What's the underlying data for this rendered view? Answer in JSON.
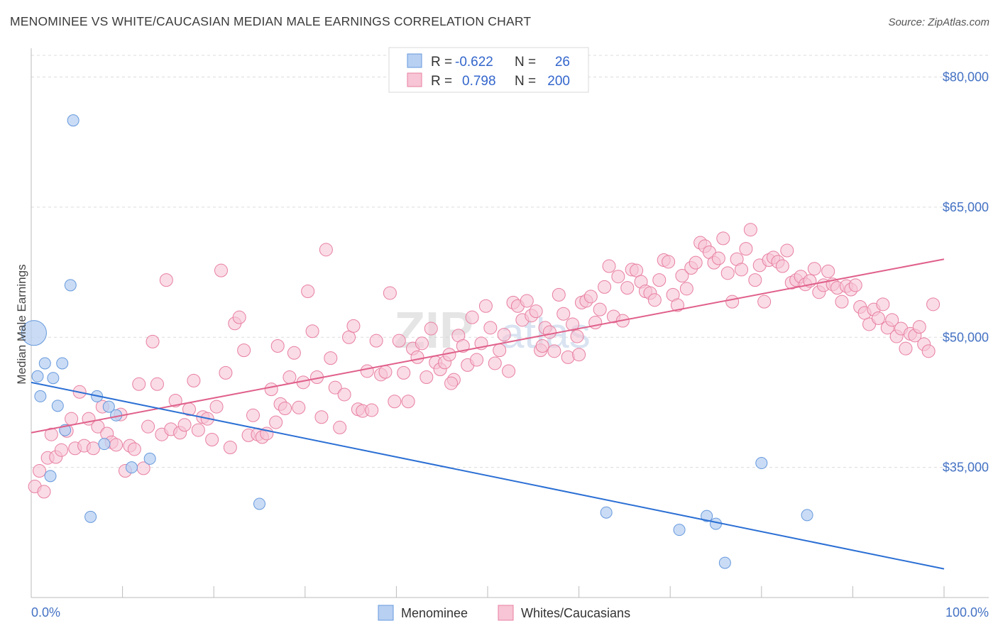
{
  "title": "MENOMINEE VS WHITE/CAUCASIAN MEDIAN MALE EARNINGS CORRELATION CHART",
  "source": "Source: ZipAtlas.com",
  "watermark": {
    "zip": "ZIP",
    "atlas": "atlas"
  },
  "colors": {
    "menominee": "#6699dd",
    "menominee_fill": "#b8d0f2",
    "white": "#e87fa0",
    "white_fill": "#f7c5d5",
    "menominee_line": "#2b6fd4",
    "white_line": "#e0608a",
    "tick_text": "#4472c4"
  },
  "legend": {
    "rows": [
      {
        "r_label": "R =",
        "r_value": "-0.622",
        "n_label": "N =",
        "n_value": "26"
      },
      {
        "r_label": "R =",
        "r_value": "0.798",
        "n_label": "N =",
        "n_value": "200"
      }
    ]
  },
  "bottom_legend": [
    "Menominee",
    "Whites/Caucasians"
  ],
  "chart_data": {
    "type": "scatter",
    "ylabel": "Median Male Earnings",
    "x_tick_labels": [
      "0.0%",
      "100.0%"
    ],
    "y_tick_labels": [
      "$35,000",
      "$50,000",
      "$65,000",
      "$80,000"
    ],
    "y_ticks": [
      35000,
      50000,
      65000,
      80000
    ],
    "xlim": [
      0,
      100
    ],
    "ylim": [
      20000,
      82500
    ],
    "grid": "horizontal dashed",
    "legend_placement": "top-center",
    "series": [
      {
        "name": "Menominee",
        "trend": [
          [
            0,
            44800
          ],
          [
            100,
            23300
          ]
        ],
        "points": [
          [
            0.3,
            50500,
            2.2
          ],
          [
            4.6,
            75000,
            1
          ],
          [
            4.3,
            56000,
            1
          ],
          [
            1.5,
            47000,
            1
          ],
          [
            3.4,
            47000,
            1
          ],
          [
            0.7,
            45500,
            1
          ],
          [
            2.4,
            45300,
            1
          ],
          [
            1.0,
            43200,
            1
          ],
          [
            7.2,
            43200,
            1
          ],
          [
            2.9,
            42100,
            1
          ],
          [
            8.5,
            42000,
            1
          ],
          [
            9.3,
            41000,
            1
          ],
          [
            3.7,
            39300,
            1
          ],
          [
            8.0,
            37700,
            1
          ],
          [
            13.0,
            36000,
            1
          ],
          [
            11.0,
            35000,
            1
          ],
          [
            2.1,
            34000,
            1
          ],
          [
            6.5,
            29300,
            1
          ],
          [
            25.0,
            30800,
            1
          ],
          [
            63.0,
            29800,
            1
          ],
          [
            71.0,
            27800,
            1
          ],
          [
            74.0,
            29400,
            1
          ],
          [
            75.0,
            28500,
            1
          ],
          [
            76.0,
            24000,
            1
          ],
          [
            80.0,
            35500,
            1
          ],
          [
            85.0,
            29500,
            1
          ]
        ]
      },
      {
        "name": "Whites/Caucasians",
        "trend": [
          [
            0,
            39000
          ],
          [
            100,
            59000
          ]
        ],
        "points": [
          [
            0.4,
            32800
          ],
          [
            0.9,
            34600
          ],
          [
            1.4,
            32200
          ],
          [
            1.8,
            36100
          ],
          [
            2.2,
            38800
          ],
          [
            2.7,
            36200
          ],
          [
            3.3,
            37000
          ],
          [
            3.9,
            39200
          ],
          [
            4.4,
            40600
          ],
          [
            4.8,
            37200
          ],
          [
            5.3,
            43700
          ],
          [
            5.8,
            37500
          ],
          [
            6.3,
            40600
          ],
          [
            6.8,
            37200
          ],
          [
            7.3,
            39700
          ],
          [
            7.8,
            42000
          ],
          [
            8.3,
            38900
          ],
          [
            8.8,
            37900
          ],
          [
            9.3,
            37600
          ],
          [
            9.8,
            41100
          ],
          [
            10.3,
            34600
          ],
          [
            10.8,
            37500
          ],
          [
            11.3,
            37100
          ],
          [
            11.8,
            44600
          ],
          [
            12.3,
            34900
          ],
          [
            12.8,
            39700
          ],
          [
            13.3,
            49500
          ],
          [
            13.8,
            44600
          ],
          [
            14.3,
            38800
          ],
          [
            14.8,
            56600
          ],
          [
            15.3,
            39400
          ],
          [
            15.8,
            42700
          ],
          [
            16.3,
            39000
          ],
          [
            16.8,
            39900
          ],
          [
            17.3,
            41700
          ],
          [
            17.8,
            45000
          ],
          [
            18.3,
            39300
          ],
          [
            18.8,
            40800
          ],
          [
            19.3,
            40600
          ],
          [
            19.8,
            38200
          ],
          [
            20.3,
            42000
          ],
          [
            20.8,
            57700
          ],
          [
            21.3,
            45900
          ],
          [
            21.8,
            37300
          ],
          [
            22.3,
            51600
          ],
          [
            22.8,
            52300
          ],
          [
            23.3,
            48500
          ],
          [
            23.8,
            38700
          ],
          [
            24.3,
            41000
          ],
          [
            24.8,
            38800
          ],
          [
            25.3,
            38500
          ],
          [
            25.8,
            38900
          ],
          [
            26.3,
            44000
          ],
          [
            26.8,
            40200
          ],
          [
            27.3,
            42300
          ],
          [
            27.8,
            41800
          ],
          [
            28.3,
            45400
          ],
          [
            28.8,
            48200
          ],
          [
            29.3,
            41900
          ],
          [
            29.8,
            44800
          ],
          [
            30.3,
            55300
          ],
          [
            30.8,
            50700
          ],
          [
            31.3,
            45400
          ],
          [
            31.8,
            40800
          ],
          [
            32.3,
            60100
          ],
          [
            32.8,
            47600
          ],
          [
            33.3,
            44200
          ],
          [
            33.8,
            39600
          ],
          [
            34.3,
            43400
          ],
          [
            34.8,
            50000
          ],
          [
            35.3,
            51300
          ],
          [
            35.8,
            41700
          ],
          [
            36.3,
            41500
          ],
          [
            36.8,
            46100
          ],
          [
            37.3,
            41600
          ],
          [
            37.8,
            49600
          ],
          [
            38.3,
            45700
          ],
          [
            38.8,
            46000
          ],
          [
            39.3,
            55100
          ],
          [
            39.8,
            42600
          ],
          [
            40.3,
            49600
          ],
          [
            40.8,
            45900
          ],
          [
            41.3,
            42600
          ],
          [
            41.8,
            48700
          ],
          [
            42.3,
            47700
          ],
          [
            42.8,
            49300
          ],
          [
            43.3,
            45400
          ],
          [
            43.8,
            51000
          ],
          [
            44.3,
            47100
          ],
          [
            44.8,
            46300
          ],
          [
            45.3,
            47100
          ],
          [
            45.8,
            48000
          ],
          [
            46.3,
            45100
          ],
          [
            46.8,
            50200
          ],
          [
            47.3,
            49000
          ],
          [
            47.8,
            46800
          ],
          [
            48.3,
            52300
          ],
          [
            48.8,
            47400
          ],
          [
            49.3,
            49300
          ],
          [
            49.8,
            53600
          ],
          [
            50.3,
            51100
          ],
          [
            50.8,
            47000
          ],
          [
            51.3,
            48500
          ],
          [
            51.8,
            50300
          ],
          [
            52.3,
            46100
          ],
          [
            52.8,
            54000
          ],
          [
            53.3,
            53600
          ],
          [
            53.8,
            52000
          ],
          [
            54.3,
            54200
          ],
          [
            54.8,
            52500
          ],
          [
            55.3,
            53000
          ],
          [
            55.8,
            48500
          ],
          [
            56.3,
            51100
          ],
          [
            56.8,
            50600
          ],
          [
            57.3,
            48400
          ],
          [
            57.8,
            54900
          ],
          [
            58.3,
            52700
          ],
          [
            58.8,
            47700
          ],
          [
            59.3,
            51500
          ],
          [
            59.8,
            50100
          ],
          [
            60.3,
            54000
          ],
          [
            60.8,
            54200
          ],
          [
            61.3,
            54700
          ],
          [
            61.8,
            51700
          ],
          [
            62.3,
            53200
          ],
          [
            62.8,
            55800
          ],
          [
            63.3,
            58200
          ],
          [
            63.8,
            52400
          ],
          [
            64.3,
            57000
          ],
          [
            64.8,
            51900
          ],
          [
            65.3,
            55700
          ],
          [
            65.8,
            57800
          ],
          [
            66.3,
            57700
          ],
          [
            66.8,
            56400
          ],
          [
            67.3,
            55300
          ],
          [
            67.8,
            55100
          ],
          [
            68.3,
            54300
          ],
          [
            68.8,
            56600
          ],
          [
            69.3,
            58900
          ],
          [
            69.8,
            58700
          ],
          [
            70.3,
            54900
          ],
          [
            70.8,
            53700
          ],
          [
            71.3,
            57100
          ],
          [
            71.8,
            55600
          ],
          [
            72.3,
            58000
          ],
          [
            72.8,
            58600
          ],
          [
            73.3,
            60900
          ],
          [
            73.8,
            60500
          ],
          [
            74.3,
            59800
          ],
          [
            74.8,
            58600
          ],
          [
            75.3,
            59100
          ],
          [
            75.8,
            61400
          ],
          [
            76.3,
            57400
          ],
          [
            76.8,
            54100
          ],
          [
            77.3,
            59000
          ],
          [
            77.8,
            57800
          ],
          [
            78.3,
            60200
          ],
          [
            78.8,
            62400
          ],
          [
            79.3,
            56600
          ],
          [
            79.8,
            58300
          ],
          [
            80.3,
            54100
          ],
          [
            80.8,
            58900
          ],
          [
            81.3,
            59200
          ],
          [
            81.8,
            58700
          ],
          [
            82.3,
            58200
          ],
          [
            82.8,
            60000
          ],
          [
            83.3,
            56300
          ],
          [
            83.8,
            56600
          ],
          [
            84.3,
            57000
          ],
          [
            84.8,
            56100
          ],
          [
            85.3,
            56500
          ],
          [
            85.8,
            57900
          ],
          [
            86.3,
            55200
          ],
          [
            86.8,
            56000
          ],
          [
            87.3,
            57600
          ],
          [
            87.8,
            56100
          ],
          [
            88.3,
            55700
          ],
          [
            88.8,
            54100
          ],
          [
            89.3,
            55900
          ],
          [
            89.8,
            55500
          ],
          [
            90.3,
            56000
          ],
          [
            90.8,
            53500
          ],
          [
            91.3,
            52800
          ],
          [
            91.8,
            51500
          ],
          [
            92.3,
            53200
          ],
          [
            92.8,
            52200
          ],
          [
            93.3,
            53800
          ],
          [
            93.8,
            51100
          ],
          [
            94.3,
            52000
          ],
          [
            94.8,
            50100
          ],
          [
            95.3,
            51000
          ],
          [
            95.8,
            48700
          ],
          [
            96.3,
            50400
          ],
          [
            96.8,
            50200
          ],
          [
            97.3,
            51200
          ],
          [
            97.8,
            49200
          ],
          [
            98.3,
            48400
          ],
          [
            98.8,
            53800
          ],
          [
            56.0,
            49000
          ],
          [
            60.0,
            48000
          ],
          [
            46.0,
            44700
          ],
          [
            27.0,
            49000
          ]
        ]
      }
    ]
  }
}
